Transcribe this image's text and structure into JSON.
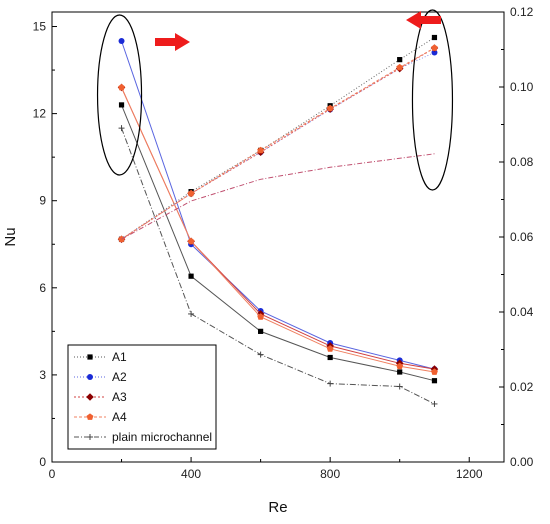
{
  "chart_data": {
    "type": "line",
    "title": "",
    "xlabel": "Re",
    "ylabel": "Nu",
    "y2label": "",
    "xlim": [
      0,
      1300
    ],
    "ylim": [
      0,
      15.5
    ],
    "y2lim": [
      0,
      0.12
    ],
    "x_ticks": [
      0,
      400,
      800,
      1200
    ],
    "y_ticks": [
      0,
      3,
      6,
      9,
      12,
      15
    ],
    "y2_ticks": [
      0.0,
      0.02,
      0.04,
      0.06,
      0.08,
      0.1,
      0.12
    ],
    "x_tick_labels": [
      "0",
      "400",
      "800",
      "1200"
    ],
    "y_tick_labels": [
      "0",
      "3",
      "6",
      "9",
      "12",
      "15"
    ],
    "y2_tick_labels": [
      "0.00",
      "0.02",
      "0.04",
      "0.06",
      "0.08",
      "0.10",
      "0.12"
    ],
    "x": [
      200,
      400,
      600,
      800,
      1000,
      1100
    ],
    "grid": false,
    "legend_position": "bottom-left",
    "series": [
      {
        "name": "A1",
        "axis": "left",
        "marker": "square",
        "color": "#000000",
        "line_color": "#555555",
        "values": [
          12.3,
          6.4,
          4.5,
          3.6,
          3.1,
          2.8
        ]
      },
      {
        "name": "A2",
        "axis": "left",
        "marker": "circle",
        "color": "#1a2bd6",
        "line_color": "#5a66e0",
        "values": [
          14.5,
          7.5,
          5.2,
          4.1,
          3.5,
          3.2
        ]
      },
      {
        "name": "A3",
        "axis": "left",
        "marker": "diamond",
        "color": "#8b0000",
        "line_color": "#d04040",
        "values": [
          12.9,
          7.6,
          5.1,
          4.0,
          3.4,
          3.2
        ]
      },
      {
        "name": "A4",
        "axis": "left",
        "marker": "pentagon",
        "color": "#f06030",
        "line_color": "#f08060",
        "values": [
          12.9,
          7.6,
          5.0,
          3.9,
          3.3,
          3.1
        ]
      },
      {
        "name": "plain microchannel",
        "axis": "left",
        "marker": "plus",
        "color": "#444444",
        "line_color": "#555555",
        "values": [
          11.5,
          5.1,
          3.7,
          2.7,
          2.6,
          2.0
        ]
      },
      {
        "name": "",
        "legend_ref": "A1",
        "axis": "right",
        "marker": "square",
        "color": "#000000",
        "line_color": "#666666",
        "values": [
          0.0594,
          0.0721,
          0.0831,
          0.095,
          0.1073,
          0.1132
        ]
      },
      {
        "name": "",
        "legend_ref": "A2",
        "axis": "right",
        "marker": "circle",
        "color": "#1a2bd6",
        "line_color": "#8890e8",
        "values": [
          0.0594,
          0.0716,
          0.0826,
          0.094,
          0.105,
          0.1092
        ]
      },
      {
        "name": "",
        "legend_ref": "A3",
        "axis": "right",
        "marker": "diamond",
        "color": "#8b0000",
        "line_color": "#e06060",
        "values": [
          0.0594,
          0.0716,
          0.0826,
          0.0941,
          0.1049,
          0.1104
        ]
      },
      {
        "name": "",
        "legend_ref": "A4",
        "axis": "right",
        "marker": "pentagon",
        "color": "#f06030",
        "line_color": "#f08060",
        "values": [
          0.0594,
          0.0716,
          0.0831,
          0.0943,
          0.1052,
          0.1104
        ]
      },
      {
        "name": "",
        "legend_ref": "plain microchannel",
        "axis": "right",
        "marker": "none",
        "color": "#c05070",
        "line_color": "#c05070",
        "values": [
          0.0594,
          0.0696,
          0.0754,
          0.0786,
          0.081,
          0.0822
        ]
      }
    ],
    "annotations": [
      {
        "type": "ellipse",
        "around_x": 200,
        "axis": "left"
      },
      {
        "type": "ellipse",
        "around_x": 1100,
        "axis": "right"
      },
      {
        "type": "arrow",
        "direction": "right",
        "color": "#ee1c1c"
      },
      {
        "type": "arrow",
        "direction": "left",
        "color": "#ee1c1c"
      }
    ]
  }
}
